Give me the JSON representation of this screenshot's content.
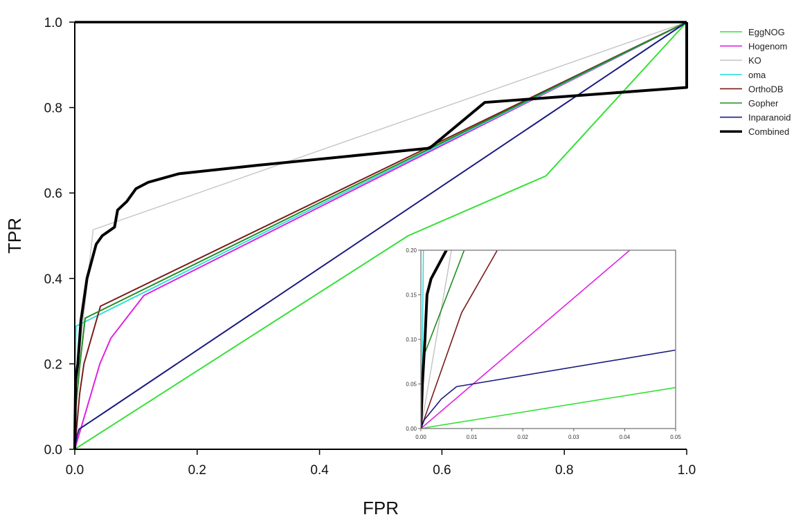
{
  "chart_data": {
    "type": "line",
    "xlabel": "FPR",
    "ylabel": "TPR",
    "xlim": [
      0,
      1
    ],
    "ylim": [
      0,
      1
    ],
    "xticks": [
      "0.0",
      "0.2",
      "0.4",
      "0.6",
      "0.8",
      "1.0"
    ],
    "yticks": [
      "0.0",
      "0.2",
      "0.4",
      "0.6",
      "0.8",
      "1.0"
    ],
    "grid": false,
    "legend_position": "top-right",
    "series": [
      {
        "name": "EggNOG",
        "color": "#35e035",
        "width": 2,
        "points": [
          [
            0,
            0
          ],
          [
            0.002,
            0.002
          ],
          [
            0.05,
            0.046
          ],
          [
            0.545,
            0.5
          ],
          [
            0.77,
            0.64
          ],
          [
            1,
            1
          ]
        ]
      },
      {
        "name": "Hogenom",
        "color": "#e020e0",
        "width": 2,
        "points": [
          [
            0,
            0
          ],
          [
            0.041,
            0.2
          ],
          [
            0.059,
            0.26
          ],
          [
            0.113,
            0.36
          ],
          [
            1,
            1
          ]
        ]
      },
      {
        "name": "KO",
        "color": "#c8c8c8",
        "width": 1.5,
        "points": [
          [
            0,
            0
          ],
          [
            0.006,
            0.2
          ],
          [
            0.03,
            0.514
          ],
          [
            1,
            1
          ]
        ]
      },
      {
        "name": "oma",
        "color": "#33dddd",
        "width": 2,
        "points": [
          [
            0,
            0
          ],
          [
            0.0003,
            0.1
          ],
          [
            0.0005,
            0.2
          ],
          [
            0.002,
            0.288
          ],
          [
            1,
            1
          ]
        ]
      },
      {
        "name": "OrthoDB",
        "color": "#7a1a1a",
        "width": 2,
        "points": [
          [
            0,
            0
          ],
          [
            0.008,
            0.13
          ],
          [
            0.015,
            0.2
          ],
          [
            0.042,
            0.335
          ],
          [
            1,
            1
          ]
        ]
      },
      {
        "name": "Gopher",
        "color": "#228b22",
        "width": 2,
        "points": [
          [
            0,
            0
          ],
          [
            0.0003,
            0.07
          ],
          [
            0.0008,
            0.085
          ],
          [
            0.0085,
            0.2
          ],
          [
            0.017,
            0.307
          ],
          [
            1,
            1
          ]
        ]
      },
      {
        "name": "Inparanoid",
        "color": "#1a1a80",
        "width": 2,
        "points": [
          [
            0,
            0
          ],
          [
            0.0007,
            0.01
          ],
          [
            0.004,
            0.033
          ],
          [
            0.007,
            0.047
          ],
          [
            0.05,
            0.088
          ],
          [
            1,
            1
          ]
        ]
      },
      {
        "name": "Combined",
        "color": "#000000",
        "width": 4,
        "points": [
          [
            0,
            0
          ],
          [
            0.0003,
            0.05
          ],
          [
            0.0008,
            0.1
          ],
          [
            0.0012,
            0.15
          ],
          [
            0.002,
            0.168
          ],
          [
            0.005,
            0.2
          ],
          [
            0.01,
            0.3
          ],
          [
            0.02,
            0.4
          ],
          [
            0.035,
            0.48
          ],
          [
            0.045,
            0.5
          ],
          [
            0.065,
            0.52
          ],
          [
            0.07,
            0.56
          ],
          [
            0.085,
            0.58
          ],
          [
            0.1,
            0.61
          ],
          [
            0.12,
            0.625
          ],
          [
            0.17,
            0.645
          ],
          [
            0.3,
            0.665
          ],
          [
            0.58,
            0.705
          ],
          [
            0.67,
            0.812
          ],
          [
            1,
            0.847
          ],
          [
            1,
            1
          ]
        ]
      }
    ],
    "inset": {
      "xlim": [
        0,
        0.05
      ],
      "ylim": [
        0,
        0.2
      ],
      "xticks": [
        "0.00",
        "0.01",
        "0.02",
        "0.03",
        "0.04",
        "0.05"
      ],
      "yticks": [
        "0.00",
        "0.05",
        "0.10",
        "0.15",
        "0.20"
      ]
    }
  }
}
